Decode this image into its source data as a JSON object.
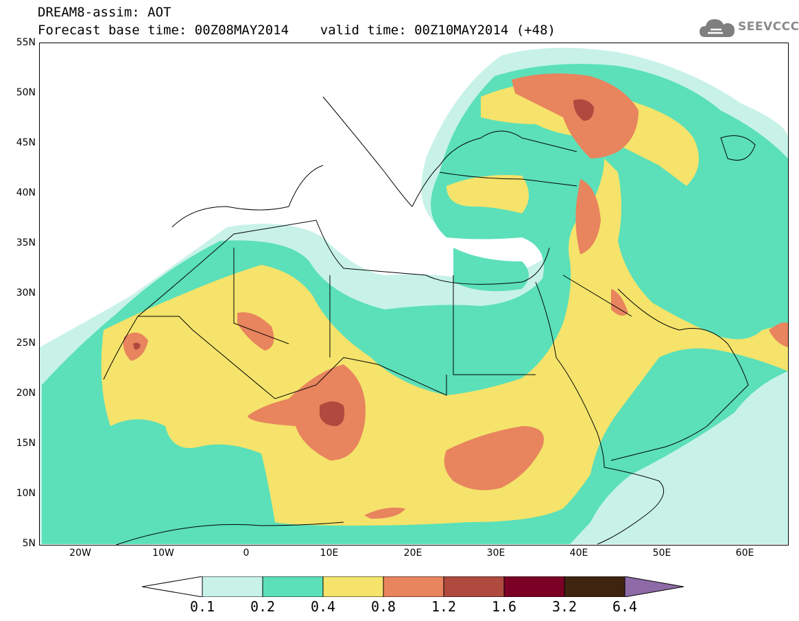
{
  "header": {
    "line1": "DREAM8-assim: AOT",
    "line2": "Forecast base time: 00Z08MAY2014    valid time: 00Z10MAY2014 (+48)"
  },
  "logo": {
    "text": "SEEVCCC",
    "icon": "cloud-icon"
  },
  "map": {
    "lat_labels": [
      "55N",
      "50N",
      "45N",
      "40N",
      "35N",
      "30N",
      "25N",
      "20N",
      "15N",
      "10N",
      "5N"
    ],
    "lon_labels": [
      "20W",
      "10W",
      "0",
      "10E",
      "20E",
      "30E",
      "40E",
      "50E",
      "60E"
    ],
    "lon_range": [
      -25,
      65
    ],
    "lat_range": [
      5,
      55
    ]
  },
  "colorbar": {
    "labels": [
      "0.1",
      "0.2",
      "0.4",
      "0.8",
      "1.2",
      "1.6",
      "3.2",
      "6.4"
    ],
    "colors": [
      "#ffffff",
      "#c8f2e8",
      "#5be0b9",
      "#f5e36b",
      "#e8845e",
      "#b04a3f",
      "#7c0026",
      "#3f2510",
      "#8e6aa6"
    ]
  }
}
